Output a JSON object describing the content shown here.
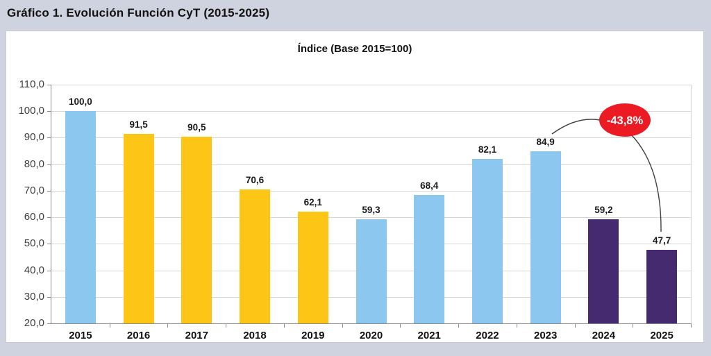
{
  "page": {
    "title": "Gráfico 1. Evolución Función CyT (2015-2025)"
  },
  "chart_data": {
    "type": "bar",
    "title": "Índice (Base 2015=100)",
    "categories": [
      "2015",
      "2016",
      "2017",
      "2018",
      "2019",
      "2020",
      "2021",
      "2022",
      "2023",
      "2024",
      "2025"
    ],
    "values": [
      100.0,
      91.5,
      90.5,
      70.6,
      62.1,
      59.3,
      68.4,
      82.1,
      84.9,
      59.2,
      47.7
    ],
    "value_labels": [
      "100,0",
      "91,5",
      "90,5",
      "70,6",
      "62,1",
      "59,3",
      "68,4",
      "82,1",
      "84,9",
      "59,2",
      "47,7"
    ],
    "bar_color_keys": [
      "blue",
      "yellow",
      "yellow",
      "yellow",
      "yellow",
      "blue",
      "blue",
      "blue",
      "blue",
      "purple",
      "purple"
    ],
    "colors": {
      "blue": "#8cc7ef",
      "yellow": "#fdc515",
      "purple": "#462a70",
      "red": "#ec1b23",
      "gridline": "#d6d6d6",
      "axis": "#898989"
    },
    "y_axis": {
      "min": 20,
      "max": 110,
      "step": 10,
      "tick_labels": [
        "110,0",
        "100,0",
        "90,0",
        "80,0",
        "70,0",
        "60,0",
        "50,0",
        "40,0",
        "30,0",
        "20,0"
      ]
    },
    "grid": true,
    "legend": null,
    "annotation": {
      "label": "-43,8%",
      "fill": "#ec1b23",
      "text_color": "#ffffff",
      "from_category": "2023",
      "to_category": "2025"
    }
  }
}
